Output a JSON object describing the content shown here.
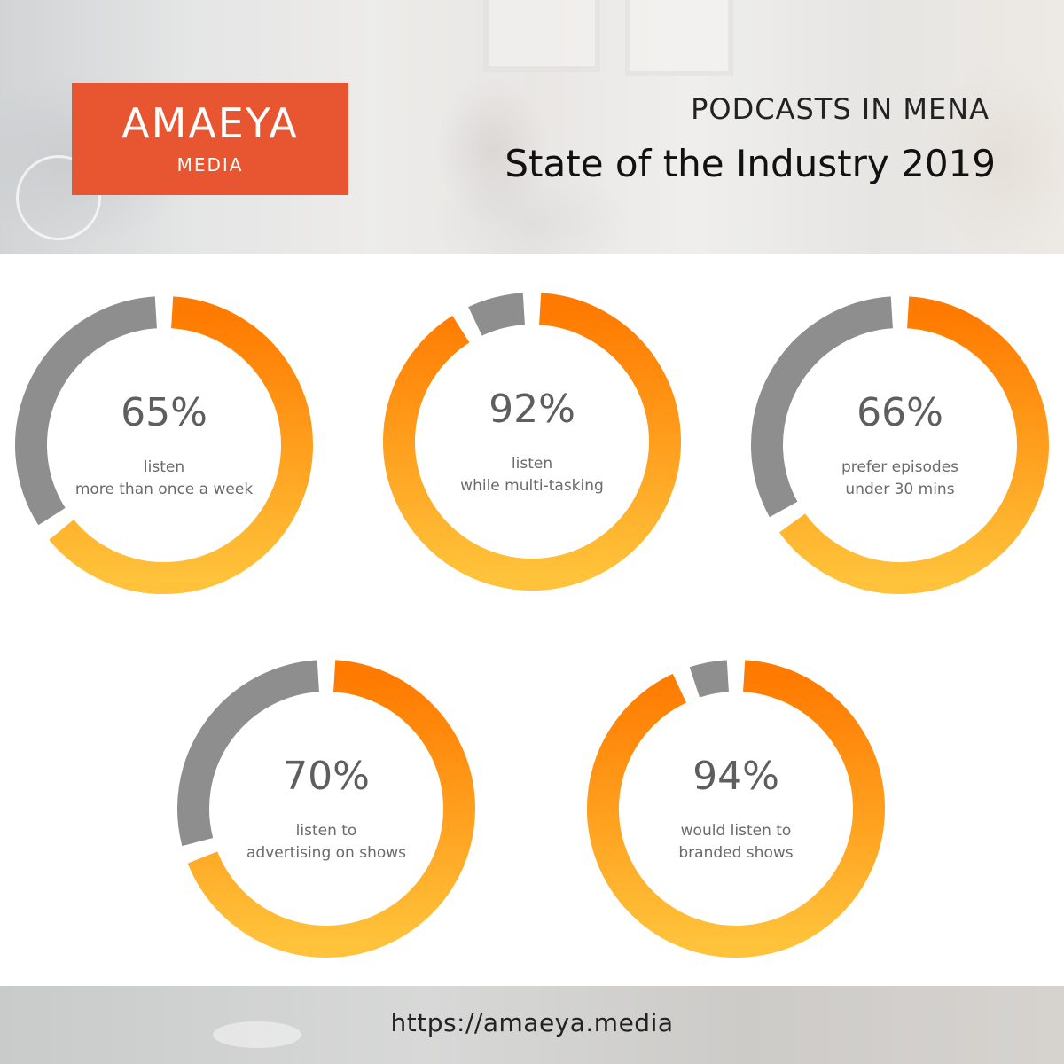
{
  "header": {
    "logo_main": "AMAEYA",
    "logo_sub": "MEDIA",
    "supertitle": "PODCASTS IN MENA",
    "title": "State of the Industry 2019"
  },
  "footer": {
    "url": "https://amaeya.media"
  },
  "colors": {
    "accent_start": "#ff7a00",
    "accent_end": "#ffc23a",
    "remainder": "#8e8e8e",
    "logo_bg": "#e75531"
  },
  "chart_data": {
    "type": "pie",
    "variant": "donut",
    "charts": [
      {
        "value": 65,
        "label": "65%",
        "caption": [
          "listen",
          "more than once a week"
        ]
      },
      {
        "value": 92,
        "label": "92%",
        "caption": [
          "listen",
          "while multi-tasking"
        ]
      },
      {
        "value": 66,
        "label": "66%",
        "caption": [
          "prefer episodes",
          "under 30 mins"
        ]
      },
      {
        "value": 70,
        "label": "70%",
        "caption": [
          "listen to",
          "advertising on shows"
        ]
      },
      {
        "value": 94,
        "label": "94%",
        "caption": [
          "would listen to",
          "branded shows"
        ]
      }
    ]
  }
}
